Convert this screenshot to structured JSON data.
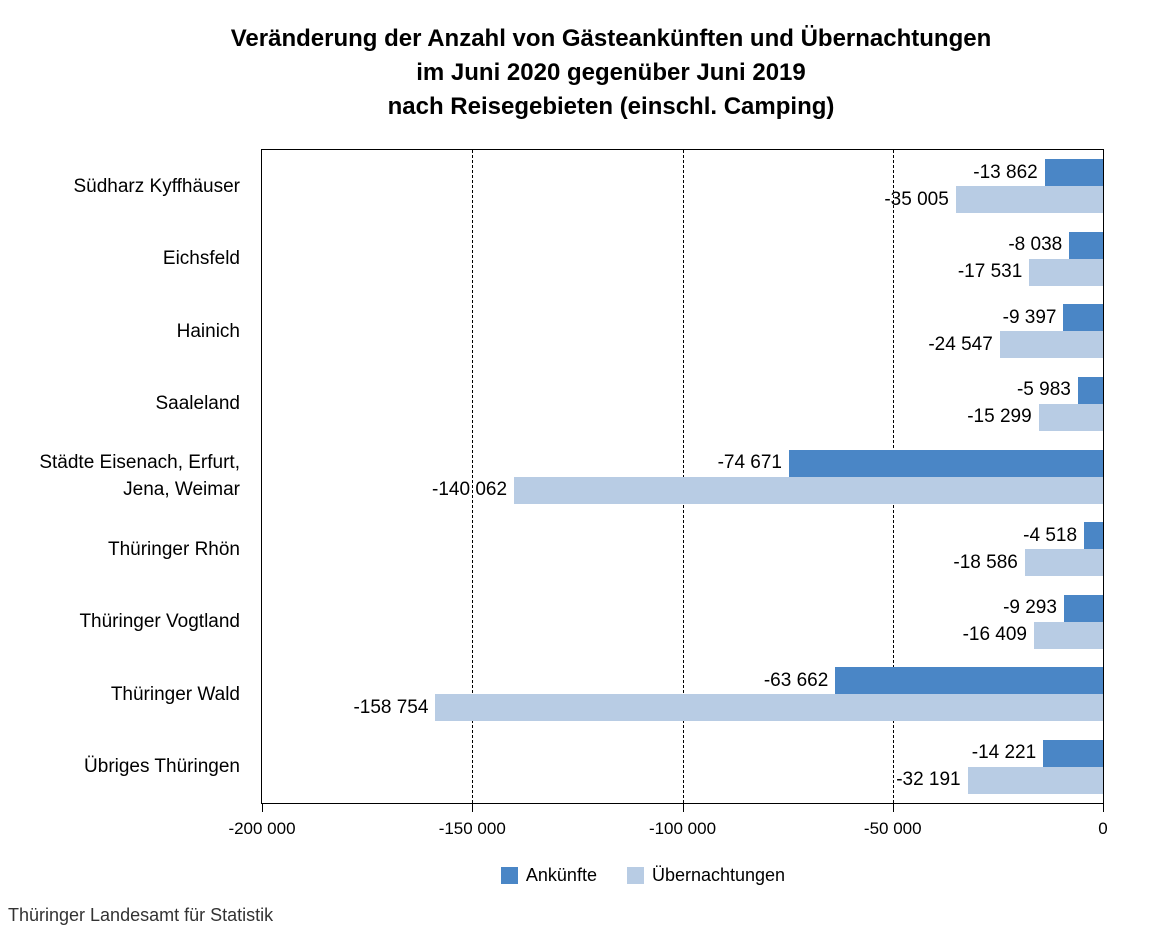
{
  "chart_data": {
    "type": "bar",
    "orientation": "horizontal",
    "title_lines": [
      "Veränderung der Anzahl von Gästeankünften und Übernachtungen",
      "im Juni 2020 gegenüber Juni 2019",
      "nach Reisegebieten (einschl. Camping)"
    ],
    "categories": [
      "Südharz Kyffhäuser",
      "Eichsfeld",
      "Hainich",
      "Saaleland",
      "Städte Eisenach, Erfurt,\nJena, Weimar",
      "Thüringer Rhön",
      "Thüringer Vogtland",
      "Thüringer Wald",
      "Übriges Thüringen"
    ],
    "series": [
      {
        "name": "Ankünfte",
        "color": "#4A86C6",
        "values": [
          -13862,
          -8038,
          -9397,
          -5983,
          -74671,
          -4518,
          -9293,
          -63662,
          -14221
        ],
        "labels": [
          "-13 862",
          "-8 038",
          "-9 397",
          "-5 983",
          "-74 671",
          "-4 518",
          "-9 293",
          "-63 662",
          "-14 221"
        ]
      },
      {
        "name": "Übernachtungen",
        "color": "#B8CCE4",
        "values": [
          -35005,
          -17531,
          -24547,
          -15299,
          -140062,
          -18586,
          -16409,
          -158754,
          -32191
        ],
        "labels": [
          "-35 005",
          "-17 531",
          "-24 547",
          "-15 299",
          "-140 062",
          "-18 586",
          "-16 409",
          "-158 754",
          "-32 191"
        ]
      }
    ],
    "x_axis": {
      "range": [
        -200000,
        0
      ],
      "ticks": [
        -200000,
        -150000,
        -100000,
        -50000,
        0
      ],
      "tick_labels": [
        "-200 000",
        "-150 000",
        "-100 000",
        "-50 000",
        "0"
      ],
      "grid": "dashed-vertical"
    },
    "legend_position": "bottom-center",
    "source": "Thüringer Landesamt für Statistik"
  }
}
